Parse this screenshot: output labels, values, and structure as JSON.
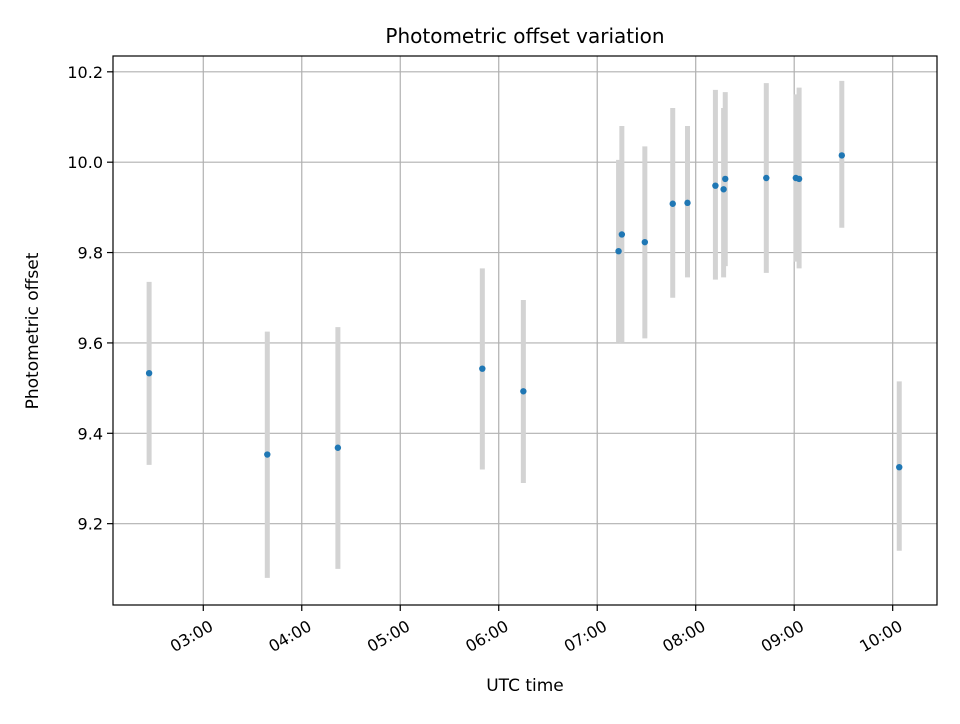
{
  "chart_data": {
    "type": "scatter",
    "title": "Photometric offset variation",
    "xlabel": "UTC time",
    "ylabel": "Photometric offset",
    "x_unit": "UTC time (HH:MM)",
    "xlim": [
      "02:05",
      "10:27"
    ],
    "ylim": [
      9.02,
      10.235
    ],
    "x_ticks": [
      "03:00",
      "04:00",
      "05:00",
      "06:00",
      "07:00",
      "08:00",
      "09:00",
      "10:00"
    ],
    "y_ticks": [
      9.2,
      9.4,
      9.6,
      9.8,
      10.0,
      10.2
    ],
    "y_tick_labels": [
      "9.2",
      "9.4",
      "9.6",
      "9.8",
      "10.0",
      "10.2"
    ],
    "grid": true,
    "x_tick_rotation_deg": 30,
    "colors": {
      "marker": "#1f77b4",
      "errorbar": "#d3d3d3",
      "grid": "#b0b0b0"
    },
    "points": [
      {
        "time": "02:27",
        "y": 9.533,
        "ylow": 9.33,
        "yhigh": 9.735
      },
      {
        "time": "03:39",
        "y": 9.353,
        "ylow": 9.08,
        "yhigh": 9.625
      },
      {
        "time": "04:22",
        "y": 9.368,
        "ylow": 9.1,
        "yhigh": 9.635
      },
      {
        "time": "05:50",
        "y": 9.543,
        "ylow": 9.32,
        "yhigh": 9.765
      },
      {
        "time": "06:15",
        "y": 9.493,
        "ylow": 9.29,
        "yhigh": 9.695
      },
      {
        "time": "07:13",
        "y": 9.803,
        "ylow": 9.6,
        "yhigh": 10.005
      },
      {
        "time": "07:15",
        "y": 9.84,
        "ylow": 9.6,
        "yhigh": 10.08
      },
      {
        "time": "07:29",
        "y": 9.823,
        "ylow": 9.61,
        "yhigh": 10.035
      },
      {
        "time": "07:46",
        "y": 9.908,
        "ylow": 9.7,
        "yhigh": 10.12
      },
      {
        "time": "07:55",
        "y": 9.91,
        "ylow": 9.745,
        "yhigh": 10.08
      },
      {
        "time": "08:12",
        "y": 9.948,
        "ylow": 9.74,
        "yhigh": 10.16
      },
      {
        "time": "08:17",
        "y": 9.94,
        "ylow": 9.745,
        "yhigh": 10.12
      },
      {
        "time": "08:18",
        "y": 9.963,
        "ylow": 9.77,
        "yhigh": 10.155
      },
      {
        "time": "08:43",
        "y": 9.965,
        "ylow": 9.755,
        "yhigh": 10.175
      },
      {
        "time": "09:01",
        "y": 9.965,
        "ylow": 9.78,
        "yhigh": 10.15
      },
      {
        "time": "09:03",
        "y": 9.963,
        "ylow": 9.765,
        "yhigh": 10.165
      },
      {
        "time": "09:29",
        "y": 10.015,
        "ylow": 9.855,
        "yhigh": 10.18
      },
      {
        "time": "10:04",
        "y": 9.325,
        "ylow": 9.14,
        "yhigh": 9.515
      }
    ]
  }
}
